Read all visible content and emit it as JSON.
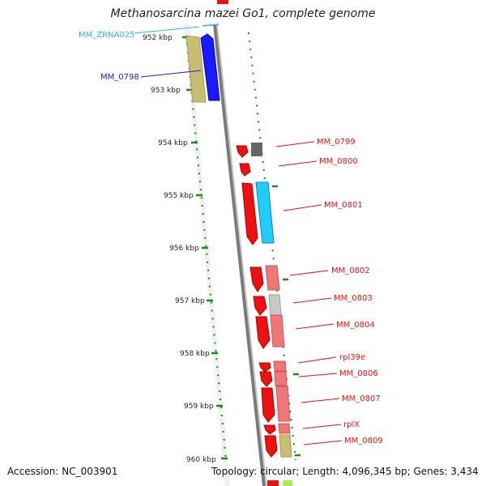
{
  "title": "Methanosarcina mazei Go1, complete genome",
  "accession": "Accession: NC_003901",
  "topology": "Topology: circular; Length: 4,096,345 bp; Genes: 3,434",
  "ticks": [
    "952 kbp",
    "953 kbp",
    "954 kbp",
    "955 kbp",
    "956 kbp",
    "957 kbp",
    "958 kbp",
    "959 kbp",
    "960 kbp"
  ],
  "colors": {
    "rna": "#29b6e8",
    "cds_blue": "#1a1aff",
    "red": "#ee1111",
    "pink": "#ee7777",
    "grey": "#666666",
    "khaki": "#c8bd73",
    "lightgrey": "#c8c8c8",
    "skyblue": "#22ccff",
    "tick_green": "#1a8a1a"
  },
  "genes": [
    {
      "label": "MM_ZRNA025",
      "color": "rna"
    },
    {
      "label": "MM_0798",
      "color": "cds_blue"
    },
    {
      "label": "MM_0799",
      "color": "red"
    },
    {
      "label": "MM_0800",
      "color": "red"
    },
    {
      "label": "MM_0801",
      "color": "red"
    },
    {
      "label": "MM_0802",
      "color": "red"
    },
    {
      "label": "MM_0803",
      "color": "red"
    },
    {
      "label": "MM_0804",
      "color": "red"
    },
    {
      "label": "rpl39e",
      "color": "red"
    },
    {
      "label": "MM_0806",
      "color": "red"
    },
    {
      "label": "MM_0807",
      "color": "red"
    },
    {
      "label": "rplX",
      "color": "red"
    },
    {
      "label": "MM_0809",
      "color": "red"
    }
  ]
}
